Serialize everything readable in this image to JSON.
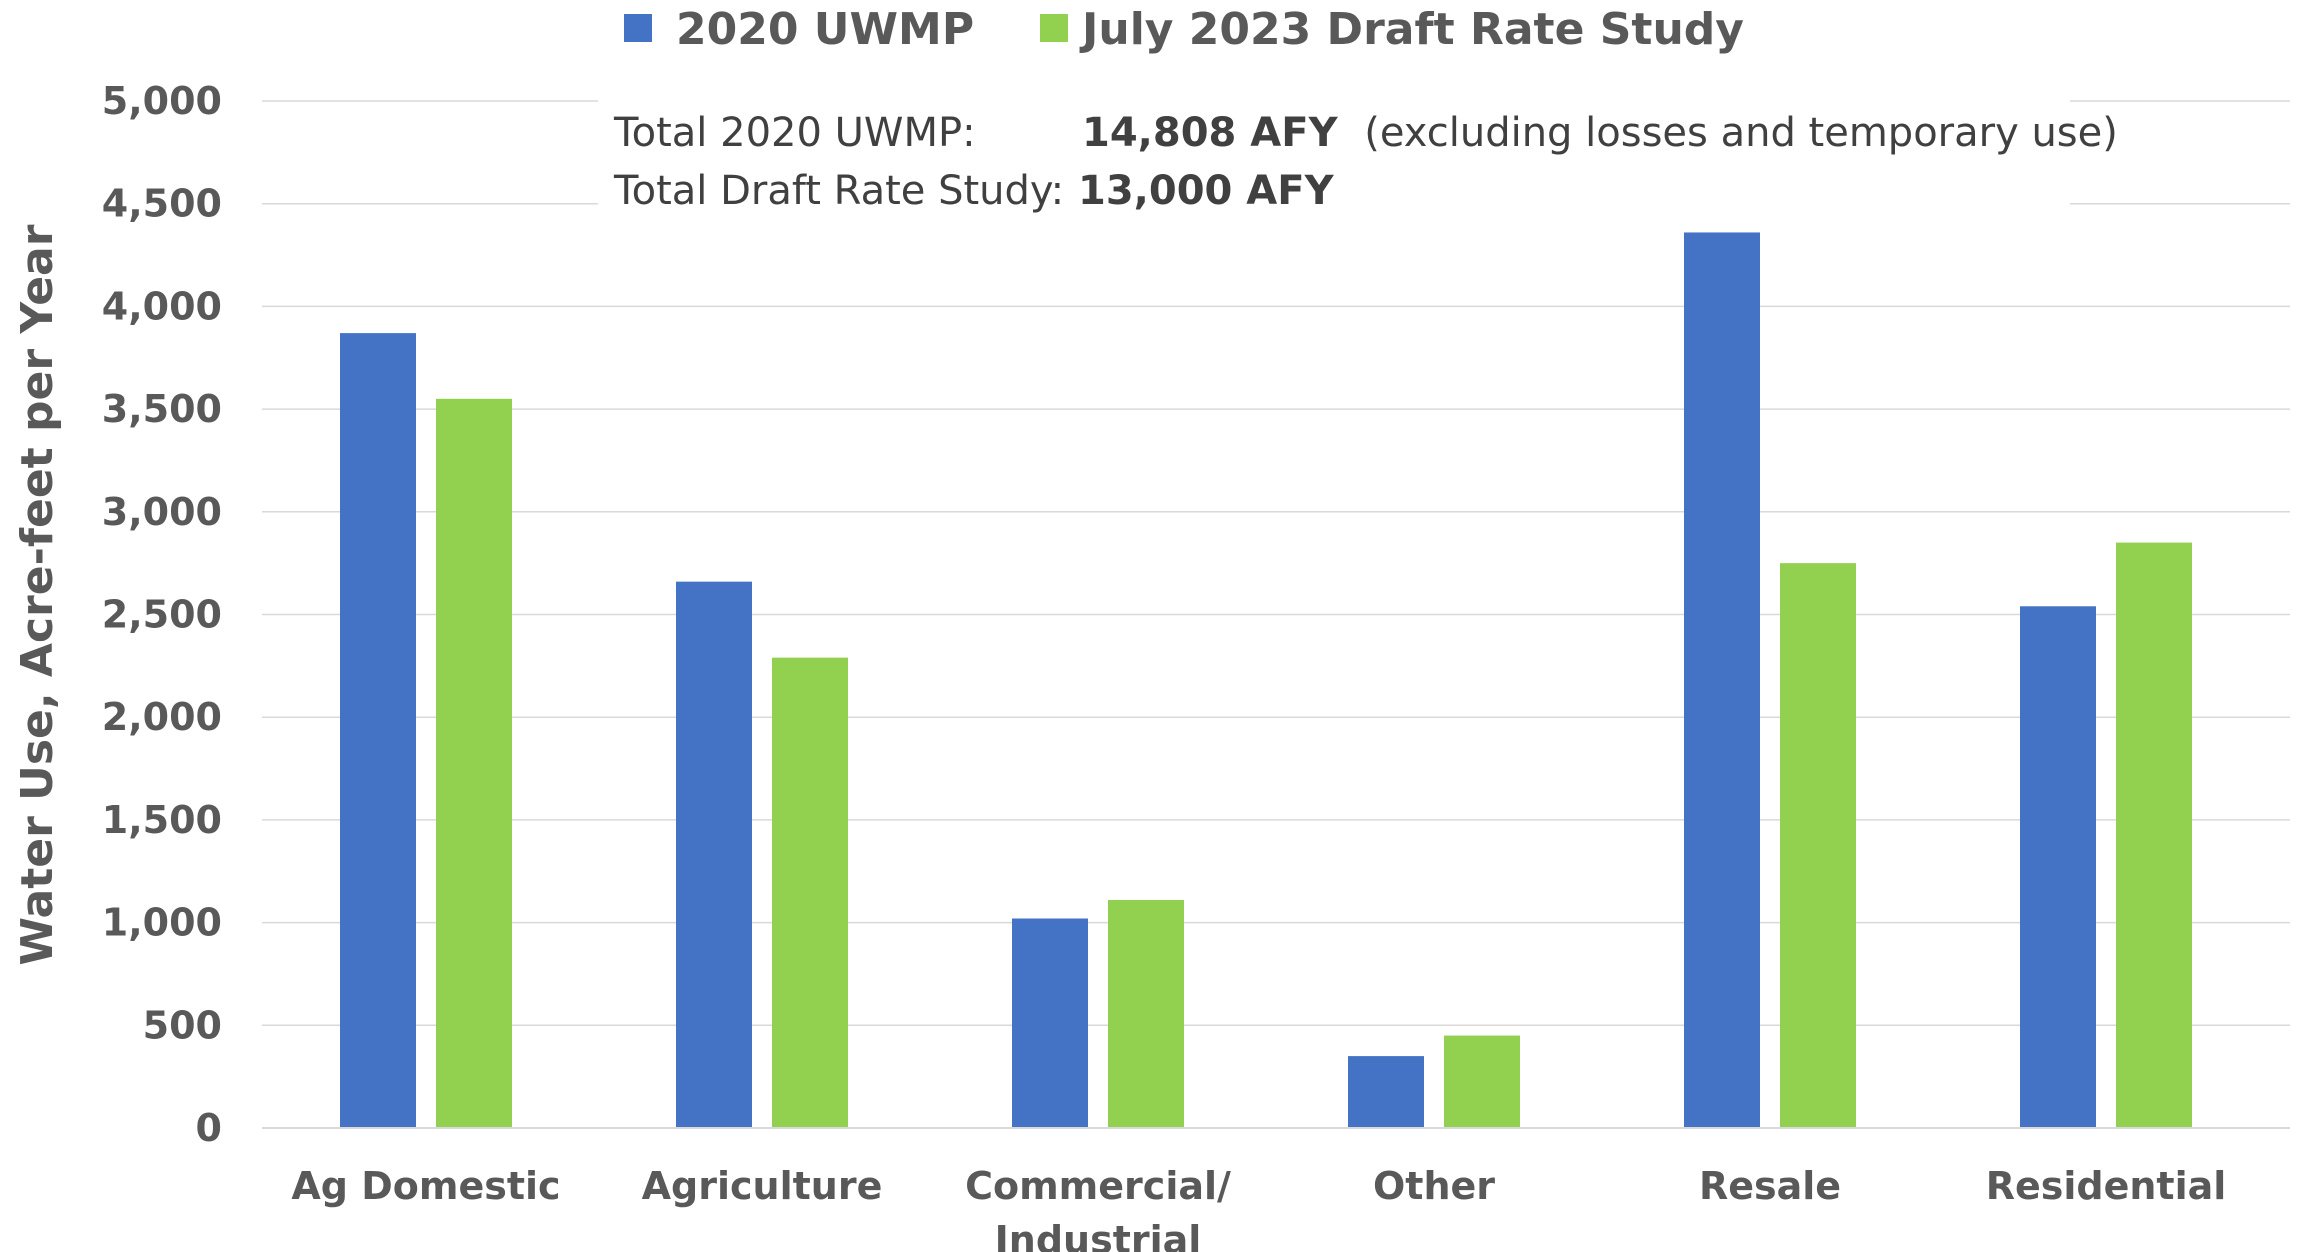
{
  "chart_data": {
    "type": "bar",
    "title": "",
    "xlabel": "",
    "ylabel": "Water Use, Acre-feet per Year",
    "ylim": [
      0,
      5000
    ],
    "yticks": [
      "0",
      "500",
      "1,000",
      "1,500",
      "2,000",
      "2,500",
      "3,000",
      "3,500",
      "4,000",
      "4,500",
      "5,000"
    ],
    "ytick_values": [
      0,
      500,
      1000,
      1500,
      2000,
      2500,
      3000,
      3500,
      4000,
      4500,
      5000
    ],
    "grid": true,
    "legend_position": "top",
    "categories": [
      [
        "Ag Domestic"
      ],
      [
        "Agriculture"
      ],
      [
        "Commercial/",
        "Industrial"
      ],
      [
        "Other"
      ],
      [
        "Resale"
      ],
      [
        "Residential"
      ]
    ],
    "series": [
      {
        "name": "2020 UWMP",
        "color": "#4472c4",
        "values": [
          3870,
          2660,
          1020,
          350,
          4360,
          2540
        ]
      },
      {
        "name": "July 2023 Draft Rate Study",
        "color": "#92d050",
        "values": [
          3550,
          2290,
          1110,
          450,
          2750,
          2850
        ]
      }
    ],
    "annotations": {
      "line1_label": "Total 2020 UWMP:",
      "line1_value": "14,808 AFY",
      "line1_note": "(excluding losses and temporary use)",
      "line2_label": "Total Draft Rate Study:",
      "line2_value": "13,000 AFY"
    }
  }
}
